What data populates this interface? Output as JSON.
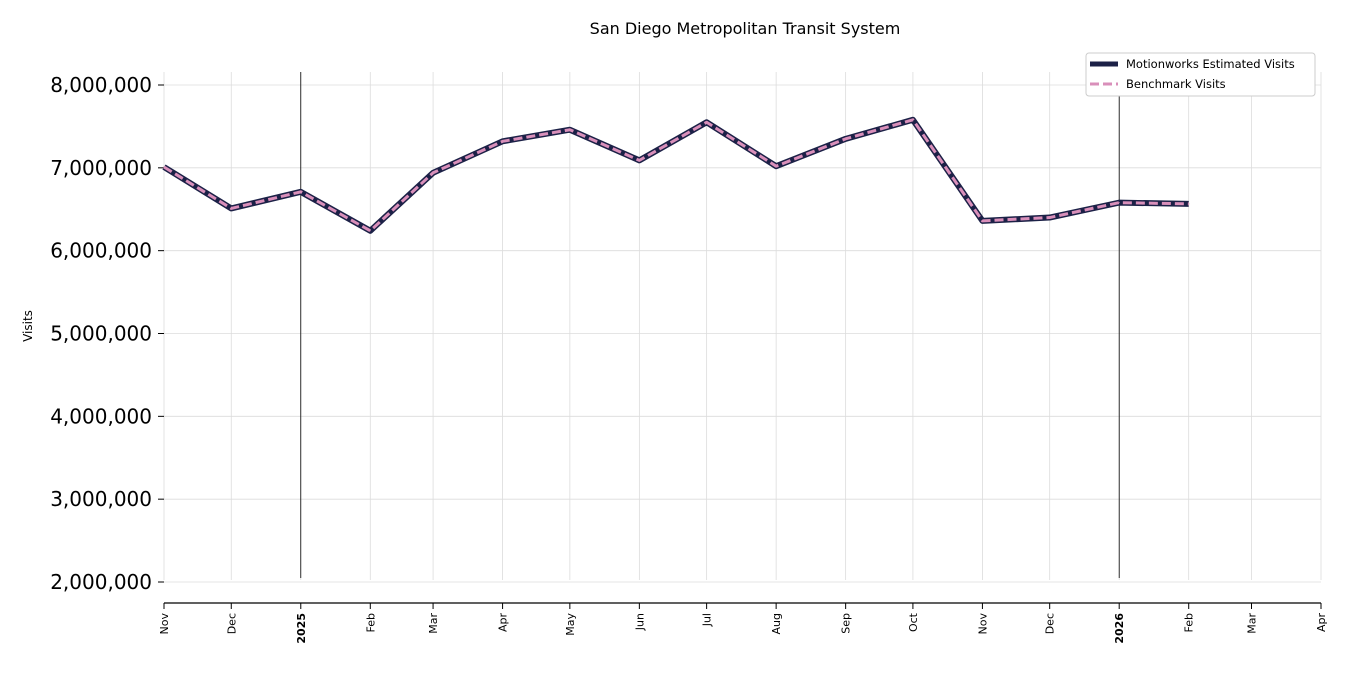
{
  "chart_data": {
    "type": "line",
    "title": "San Diego Metropolitan Transit System",
    "ylabel": "Visits",
    "xlabel": "",
    "ylim": [
      2000000,
      8000000
    ],
    "yticks": [
      2000000,
      3000000,
      4000000,
      5000000,
      6000000,
      7000000,
      8000000
    ],
    "ytick_labels": [
      "2,000,000",
      "3,000,000",
      "4,000,000",
      "5,000,000",
      "6,000,000",
      "7,000,000",
      "8,000,000"
    ],
    "xlim": [
      "2024-11-01",
      "2026-04-01"
    ],
    "xticks": [
      {
        "date": "2024-11-01",
        "label": "Nov",
        "bold": false
      },
      {
        "date": "2024-12-01",
        "label": "Dec",
        "bold": false
      },
      {
        "date": "2025-01-01",
        "label": "2025",
        "bold": true
      },
      {
        "date": "2025-02-01",
        "label": "Feb",
        "bold": false
      },
      {
        "date": "2025-03-01",
        "label": "Mar",
        "bold": false
      },
      {
        "date": "2025-04-01",
        "label": "Apr",
        "bold": false
      },
      {
        "date": "2025-05-01",
        "label": "May",
        "bold": false
      },
      {
        "date": "2025-06-01",
        "label": "Jun",
        "bold": false
      },
      {
        "date": "2025-07-01",
        "label": "Jul",
        "bold": false
      },
      {
        "date": "2025-08-01",
        "label": "Aug",
        "bold": false
      },
      {
        "date": "2025-09-01",
        "label": "Sep",
        "bold": false
      },
      {
        "date": "2025-10-01",
        "label": "Oct",
        "bold": false
      },
      {
        "date": "2025-11-01",
        "label": "Nov",
        "bold": false
      },
      {
        "date": "2025-12-01",
        "label": "Dec",
        "bold": false
      },
      {
        "date": "2026-01-01",
        "label": "2026",
        "bold": true
      },
      {
        "date": "2026-02-01",
        "label": "Feb",
        "bold": false
      },
      {
        "date": "2026-03-01",
        "label": "Mar",
        "bold": false
      },
      {
        "date": "2026-04-01",
        "label": "Apr",
        "bold": false
      }
    ],
    "year_lines": [
      "2025-01-01",
      "2026-01-01"
    ],
    "grid": true,
    "legend_position": "top-right",
    "x": [
      "2024-11-01",
      "2024-12-01",
      "2025-01-01",
      "2025-02-01",
      "2025-03-01",
      "2025-04-01",
      "2025-05-01",
      "2025-06-01",
      "2025-07-01",
      "2025-08-01",
      "2025-09-01",
      "2025-10-01",
      "2025-11-01",
      "2025-12-01",
      "2026-01-01",
      "2026-02-01"
    ],
    "series": [
      {
        "name": "Motionworks Estimated Visits",
        "color": "#1c2147",
        "style": "solid",
        "values": [
          7010000,
          6510000,
          6710000,
          6240000,
          6940000,
          7320000,
          7460000,
          7090000,
          7550000,
          7020000,
          7350000,
          7580000,
          6360000,
          6400000,
          6580000,
          6565000
        ]
      },
      {
        "name": "Benchmark Visits",
        "color": "#d98fba",
        "style": "dashed",
        "values": [
          7010000,
          6510000,
          6710000,
          6240000,
          6940000,
          7320000,
          7460000,
          7090000,
          7550000,
          7020000,
          7350000,
          7580000,
          6360000,
          6400000,
          6580000,
          6565000
        ]
      }
    ]
  }
}
